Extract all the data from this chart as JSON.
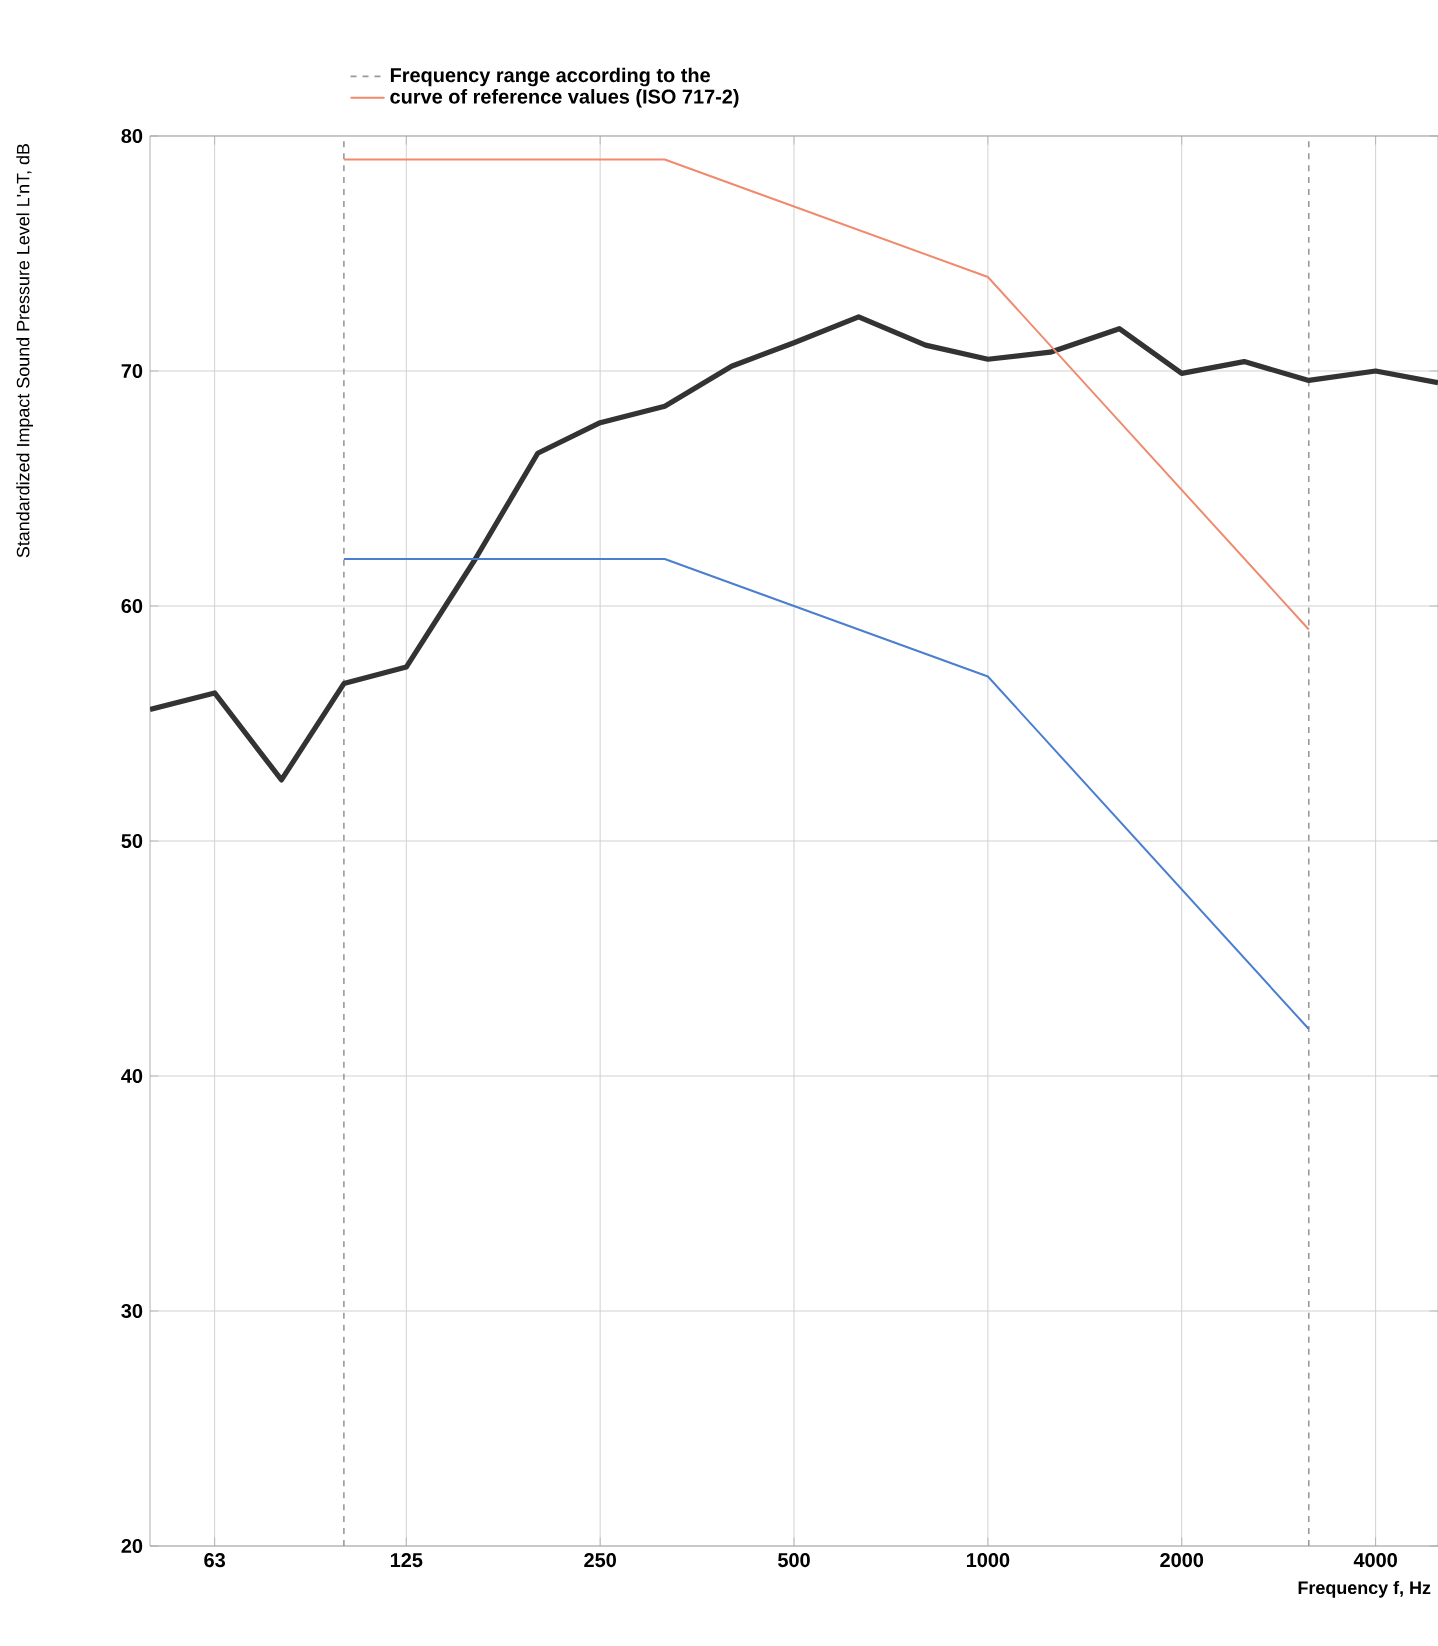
{
  "chart_data": {
    "type": "line",
    "xlabel": "Frequency f, Hz",
    "ylabel": "Standardized Impact Sound Pressure Level L'nT, dB",
    "log": "x",
    "xlim": [
      50,
      5000
    ],
    "ylim": [
      20,
      80
    ],
    "xticks": [
      63,
      125,
      250,
      500,
      1000,
      2000,
      4000
    ],
    "yticks": [
      20,
      30,
      40,
      50,
      60,
      70,
      80
    ],
    "grid": true,
    "legend": "top",
    "line_style": "solid",
    "series": [
      {
        "color": "#333333",
        "x": [
          50,
          63,
          80,
          100,
          125,
          160,
          200,
          250,
          315,
          400,
          500,
          630,
          800,
          1000,
          1250,
          1600,
          2000,
          2500,
          3150,
          4000,
          5000
        ],
        "values": [
          55.6,
          56.3,
          52.6,
          56.7,
          57.4,
          62,
          66.5,
          67.8,
          68.5,
          70.2,
          71.2,
          72.3,
          71.1,
          70.5,
          70.8,
          71.8,
          69.9,
          70.4,
          69.6,
          70,
          69.5
        ]
      },
      {
        "name": "curve of reference values (ISO 717-2)",
        "color": "#ef8a6e",
        "x": [
          100,
          315,
          1000,
          3150
        ],
        "values": [
          79,
          79,
          74,
          59
        ]
      },
      {
        "color": "#4a7fcf",
        "x": [
          100,
          315,
          1000,
          3150
        ],
        "values": [
          62,
          62,
          57,
          42
        ]
      }
    ],
    "ref_lines": [
      {
        "axis": "x",
        "value": 100,
        "label": "Frequency range according to the",
        "line_style": "dashed",
        "color": "#999999"
      },
      {
        "axis": "x",
        "value": 3150,
        "line_style": "dashed",
        "color": "#999999"
      }
    ]
  }
}
